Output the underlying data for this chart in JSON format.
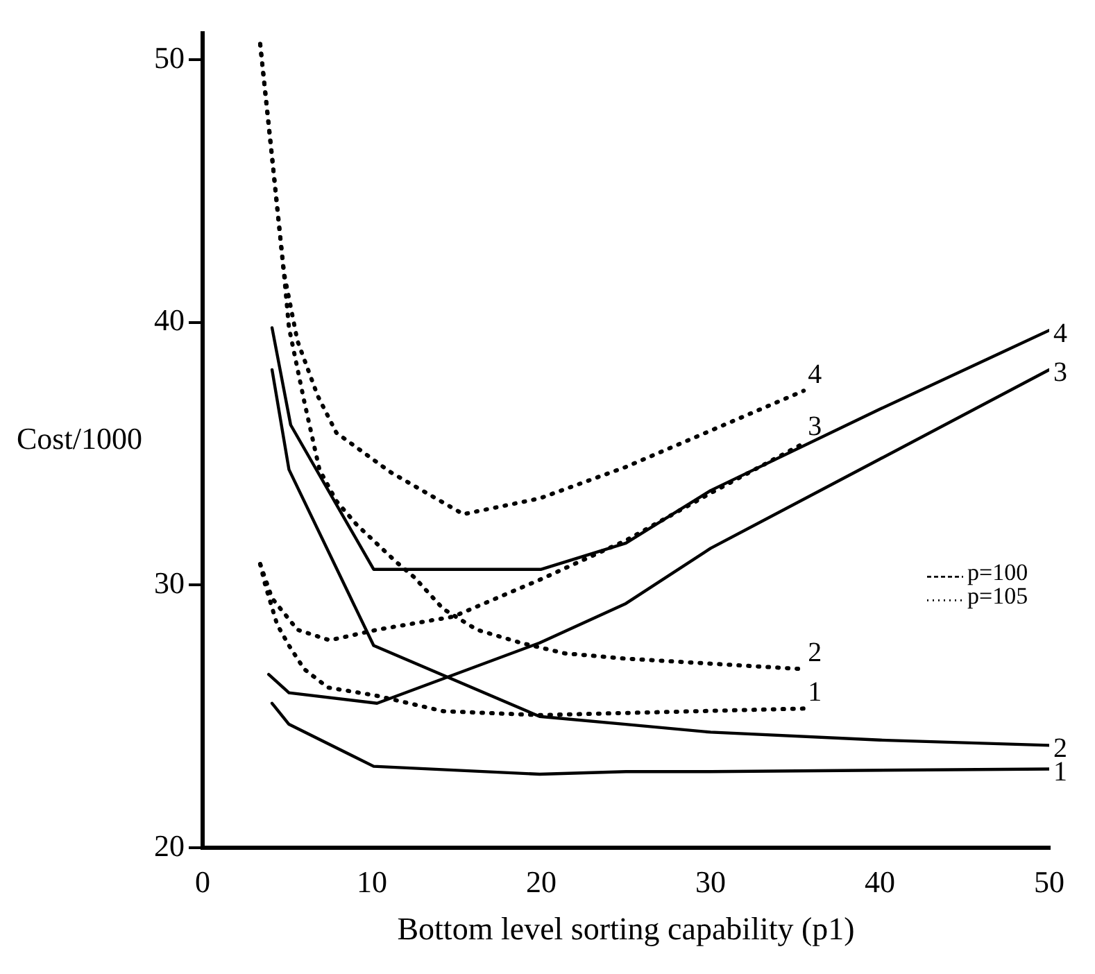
{
  "chart_data": {
    "type": "line",
    "xlabel": "Bottom level sorting capability (p1)",
    "ylabel": "Cost/1000",
    "xlim": [
      0,
      50
    ],
    "xticks": [
      0,
      10,
      20,
      30,
      40,
      50
    ],
    "ylim": [
      20,
      51
    ],
    "yticks": [
      20,
      30,
      40,
      50
    ],
    "grid": false,
    "annotations": [
      "p=100",
      "p=105"
    ],
    "series": [
      {
        "name": "1",
        "color": "#000000",
        "line_style": "solid",
        "x": [
          4.1,
          5.1,
          10.1,
          19.9,
          25,
          30,
          50
        ],
        "values": [
          25.5,
          24.7,
          23.1,
          22.8,
          22.9,
          22.9,
          23.0
        ]
      },
      {
        "name": "2",
        "color": "#000000",
        "line_style": "solid",
        "x": [
          4.1,
          5.1,
          10.1,
          19.9,
          25,
          30,
          40,
          50
        ],
        "values": [
          38.2,
          34.4,
          27.7,
          25.0,
          24.7,
          24.4,
          24.1,
          23.9
        ]
      },
      {
        "name": "3",
        "color": "#000000",
        "line_style": "solid",
        "x": [
          3.9,
          5.1,
          10.3,
          19.9,
          25,
          30,
          40,
          50
        ],
        "values": [
          26.6,
          25.9,
          25.5,
          27.8,
          29.3,
          31.4,
          34.8,
          38.2
        ]
      },
      {
        "name": "4",
        "color": "#000000",
        "line_style": "solid",
        "x": [
          4.1,
          5.2,
          10.1,
          20,
          25,
          30,
          40,
          50
        ],
        "values": [
          39.8,
          36.1,
          30.6,
          30.6,
          31.6,
          33.6,
          36.7,
          39.7
        ]
      },
      {
        "name": "1",
        "color": "#000000",
        "line_style": "dotted",
        "x": [
          3.4,
          3.7,
          4.4,
          5.1,
          6,
          7.4,
          10.2,
          14.2,
          19.9,
          35.5
        ],
        "values": [
          30.8,
          30.0,
          28.5,
          27.7,
          26.8,
          26.1,
          25.8,
          25.2,
          25.05,
          25.3
        ]
      },
      {
        "name": "2",
        "color": "#000000",
        "line_style": "dotted",
        "x": [
          3.4,
          4.1,
          4.8,
          5.1,
          6,
          6.9,
          7.9,
          9.1,
          11.4,
          12.5,
          14.2,
          16.2,
          18.8,
          21.4,
          25,
          35.5
        ],
        "values": [
          50.6,
          46.3,
          41.9,
          39.8,
          37.0,
          34.4,
          33.2,
          32.3,
          30.9,
          30.3,
          29.1,
          28.3,
          27.8,
          27.4,
          27.2,
          26.8
        ]
      },
      {
        "name": "3",
        "color": "#000000",
        "line_style": "dotted",
        "x": [
          3.4,
          4.1,
          5.6,
          7.5,
          10.3,
          14.8,
          19.9,
          25,
          30,
          35.5
        ],
        "values": [
          30.8,
          29.5,
          28.3,
          27.9,
          28.3,
          28.8,
          30.2,
          31.7,
          33.5,
          35.4
        ]
      },
      {
        "name": "4",
        "color": "#000000",
        "line_style": "dotted",
        "x": [
          3.4,
          4.1,
          4.8,
          5.6,
          6.8,
          7.9,
          11.1,
          15.4,
          19.9,
          25,
          35.5
        ],
        "values": [
          50.6,
          46.3,
          41.9,
          39.3,
          37.2,
          35.8,
          34.3,
          32.7,
          33.3,
          34.5,
          37.4
        ]
      }
    ]
  }
}
